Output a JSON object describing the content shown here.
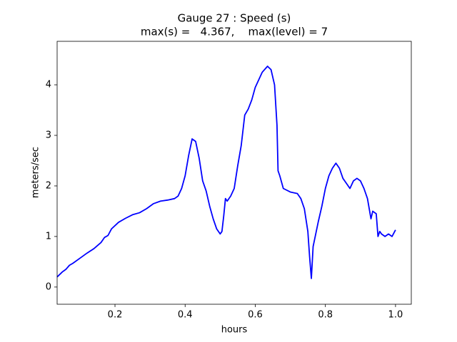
{
  "chart_data": {
    "type": "line",
    "title": [
      "Gauge 27 : Speed (s)",
      "max(s) =   4.367,    max(level) = 7"
    ],
    "xlabel": "hours",
    "ylabel": "meters/sec",
    "color": "#0000ff",
    "x": [
      0.035,
      0.05,
      0.06,
      0.07,
      0.08,
      0.1,
      0.12,
      0.14,
      0.16,
      0.17,
      0.18,
      0.19,
      0.21,
      0.23,
      0.25,
      0.27,
      0.29,
      0.31,
      0.33,
      0.35,
      0.37,
      0.38,
      0.39,
      0.4,
      0.41,
      0.42,
      0.43,
      0.44,
      0.45,
      0.46,
      0.47,
      0.48,
      0.49,
      0.5,
      0.505,
      0.51,
      0.515,
      0.52,
      0.53,
      0.54,
      0.55,
      0.56,
      0.57,
      0.58,
      0.59,
      0.6,
      0.62,
      0.635,
      0.645,
      0.655,
      0.662,
      0.665,
      0.67,
      0.68,
      0.7,
      0.72,
      0.73,
      0.74,
      0.75,
      0.755,
      0.76,
      0.765,
      0.78,
      0.79,
      0.8,
      0.81,
      0.82,
      0.83,
      0.84,
      0.85,
      0.86,
      0.87,
      0.88,
      0.89,
      0.9,
      0.91,
      0.92,
      0.93,
      0.935,
      0.945,
      0.95,
      0.955,
      0.96,
      0.97,
      0.98,
      0.99,
      1.0
    ],
    "values": [
      0.2,
      0.3,
      0.35,
      0.43,
      0.47,
      0.57,
      0.67,
      0.76,
      0.88,
      0.98,
      1.02,
      1.15,
      1.28,
      1.36,
      1.43,
      1.47,
      1.55,
      1.65,
      1.7,
      1.72,
      1.75,
      1.8,
      1.95,
      2.2,
      2.6,
      2.93,
      2.88,
      2.55,
      2.1,
      1.9,
      1.6,
      1.35,
      1.15,
      1.05,
      1.1,
      1.4,
      1.75,
      1.7,
      1.8,
      1.95,
      2.4,
      2.8,
      3.4,
      3.52,
      3.7,
      3.95,
      4.25,
      4.367,
      4.3,
      4.0,
      3.2,
      2.3,
      2.2,
      1.95,
      1.88,
      1.85,
      1.75,
      1.55,
      1.1,
      0.6,
      0.17,
      0.8,
      1.3,
      1.6,
      1.95,
      2.2,
      2.35,
      2.45,
      2.35,
      2.15,
      2.05,
      1.95,
      2.1,
      2.15,
      2.1,
      1.95,
      1.75,
      1.35,
      1.5,
      1.45,
      1.0,
      1.1,
      1.05,
      1.0,
      1.05,
      1.0,
      1.13
    ],
    "xlim": [
      0.035,
      1.045
    ],
    "ylim": [
      -0.34,
      4.86
    ],
    "xticks": [
      0.2,
      0.4,
      0.6,
      0.8,
      {
        "value": 1,
        "label": "1.0"
      }
    ],
    "yticks": [
      0,
      1,
      2,
      3,
      4
    ]
  }
}
